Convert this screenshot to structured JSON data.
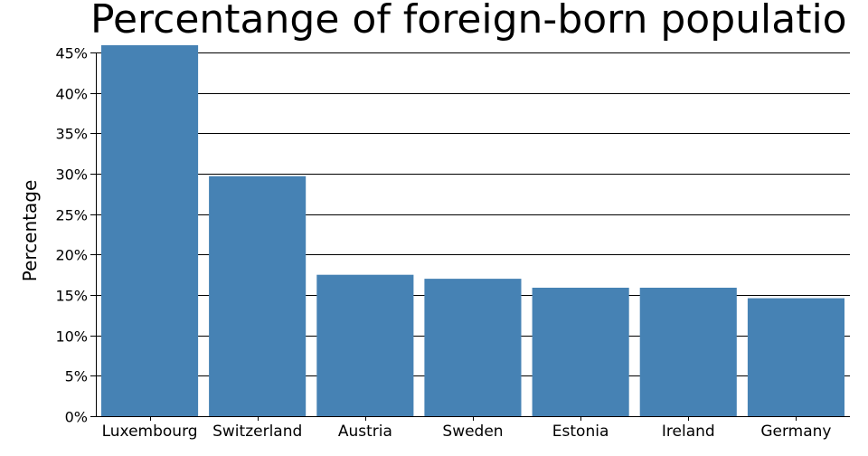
{
  "chart_data": {
    "type": "bar",
    "title": "Percentange of foreign-born populatio",
    "xlabel": "",
    "ylabel": "Percentage",
    "categories": [
      "Luxembourg",
      "Switzerland",
      "Austria",
      "Sweden",
      "Estonia",
      "Ireland",
      "Germany"
    ],
    "values": [
      46.0,
      29.7,
      17.5,
      17.0,
      15.9,
      15.9,
      14.6
    ],
    "ylim": [
      0,
      45
    ],
    "yticks": [
      0,
      5,
      10,
      15,
      20,
      25,
      30,
      35,
      40,
      45
    ],
    "ytick_suffix": "%",
    "grid": true,
    "bar_color": "#4682b4",
    "grid_color": "#000000"
  }
}
